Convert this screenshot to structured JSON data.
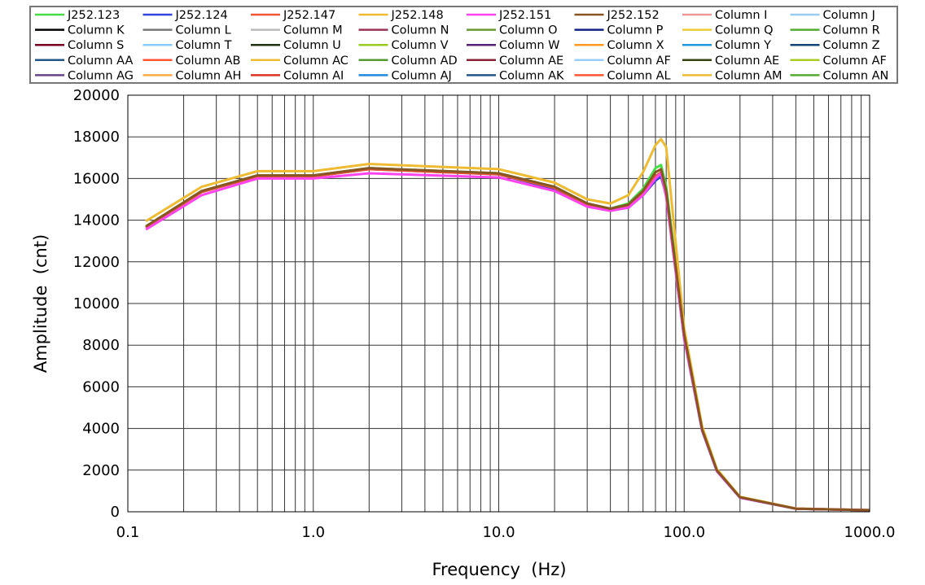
{
  "chart_data": {
    "type": "line",
    "title": "",
    "xlabel": "Frequency  (Hz)",
    "ylabel": "Amplitude  (cnt)",
    "xscale": "log",
    "xlim": [
      0.1,
      1000
    ],
    "ylim": [
      0,
      20000
    ],
    "grid": true,
    "legend_position": "top",
    "xticks": [
      "0.1",
      "1.0",
      "10.0",
      "100.0",
      "1000.0"
    ],
    "yticks": [
      "0",
      "2000",
      "4000",
      "6000",
      "8000",
      "10000",
      "12000",
      "14000",
      "16000",
      "18000",
      "20000"
    ],
    "x": [
      0.125,
      0.25,
      0.5,
      1,
      2,
      10,
      20,
      30,
      40,
      50,
      60,
      70,
      75,
      80,
      100,
      125,
      150,
      200,
      400,
      1000
    ],
    "series": [
      {
        "name": "J252.123",
        "color": "#44dd44",
        "values": [
          13700,
          15400,
          16150,
          16150,
          16500,
          16250,
          15600,
          14800,
          14550,
          14800,
          15500,
          16500,
          16650,
          15600,
          8600,
          4000,
          2000,
          700,
          150,
          80
        ]
      },
      {
        "name": "J252.124",
        "color": "#3344dd",
        "values": [
          13650,
          15350,
          16100,
          16100,
          16450,
          16200,
          15500,
          14700,
          14500,
          14600,
          15200,
          15900,
          16100,
          15200,
          8300,
          3900,
          1950,
          680,
          150,
          80
        ]
      },
      {
        "name": "J252.147",
        "color": "#ee5533",
        "values": [
          13650,
          15350,
          16100,
          16100,
          16450,
          16200,
          15550,
          14750,
          14550,
          14700,
          15300,
          16100,
          16300,
          15300,
          8400,
          3950,
          1980,
          690,
          150,
          80
        ]
      },
      {
        "name": "J252.148",
        "color": "#eebb33",
        "values": [
          13950,
          15600,
          16350,
          16350,
          16700,
          16450,
          15800,
          15000,
          14800,
          15200,
          16300,
          17600,
          17900,
          17500,
          8800,
          4100,
          2050,
          720,
          160,
          80
        ]
      },
      {
        "name": "J252.151",
        "color": "#ff44ee",
        "values": [
          13550,
          15200,
          16000,
          16000,
          16250,
          16050,
          15400,
          14650,
          14450,
          14600,
          15200,
          16000,
          16250,
          15100,
          8300,
          3900,
          1950,
          680,
          150,
          80
        ]
      },
      {
        "name": "J252.152",
        "color": "#885522",
        "values": [
          13700,
          15400,
          16150,
          16150,
          16500,
          16250,
          15600,
          14800,
          14550,
          14750,
          15400,
          16300,
          16450,
          15400,
          8500,
          3950,
          1990,
          700,
          150,
          80
        ]
      }
    ],
    "legend": [
      {
        "name": "J252.123",
        "color": "#44dd44"
      },
      {
        "name": "J252.124",
        "color": "#3344dd"
      },
      {
        "name": "J252.147",
        "color": "#ee5533"
      },
      {
        "name": "J252.148",
        "color": "#eebb33"
      },
      {
        "name": "J252.151",
        "color": "#ff44ee"
      },
      {
        "name": "J252.152",
        "color": "#885522"
      },
      {
        "name": "Column I",
        "color": "#ee9999"
      },
      {
        "name": "Column J",
        "color": "#99ccee"
      },
      {
        "name": "Column K",
        "color": "#000000"
      },
      {
        "name": "Column L",
        "color": "#777777"
      },
      {
        "name": "Column M",
        "color": "#bbbbbb"
      },
      {
        "name": "Column N",
        "color": "#993355"
      },
      {
        "name": "Column O",
        "color": "#669933"
      },
      {
        "name": "Column P",
        "color": "#112288"
      },
      {
        "name": "Column Q",
        "color": "#eecc33"
      },
      {
        "name": "Column R",
        "color": "#55aa33"
      },
      {
        "name": "Column S",
        "color": "#770022"
      },
      {
        "name": "Column T",
        "color": "#88ccff"
      },
      {
        "name": "Column U",
        "color": "#223311"
      },
      {
        "name": "Column V",
        "color": "#99cc22"
      },
      {
        "name": "Column W",
        "color": "#552277"
      },
      {
        "name": "Column X",
        "color": "#ff9922"
      },
      {
        "name": "Column Y",
        "color": "#2299dd"
      },
      {
        "name": "Column Z",
        "color": "#114477"
      },
      {
        "name": "Column AA",
        "color": "#225588"
      },
      {
        "name": "Column AB",
        "color": "#ff5533"
      },
      {
        "name": "Column AC",
        "color": "#eebb33"
      },
      {
        "name": "Column AD",
        "color": "#559933"
      },
      {
        "name": "Column AE",
        "color": "#882233"
      },
      {
        "name": "Column AF",
        "color": "#99ccff"
      },
      {
        "name": "Column AE",
        "color": "#334411"
      },
      {
        "name": "Column AF",
        "color": "#aacc22"
      },
      {
        "name": "Column AG",
        "color": "#664488"
      },
      {
        "name": "Column AH",
        "color": "#ffaa44"
      },
      {
        "name": "Column AI",
        "color": "#dd3322"
      },
      {
        "name": "Column AJ",
        "color": "#2288dd"
      },
      {
        "name": "Column AK",
        "color": "#225588"
      },
      {
        "name": "Column AL",
        "color": "#ff5533"
      },
      {
        "name": "Column AM",
        "color": "#eebb33"
      },
      {
        "name": "Column AN",
        "color": "#55aa33"
      }
    ]
  }
}
